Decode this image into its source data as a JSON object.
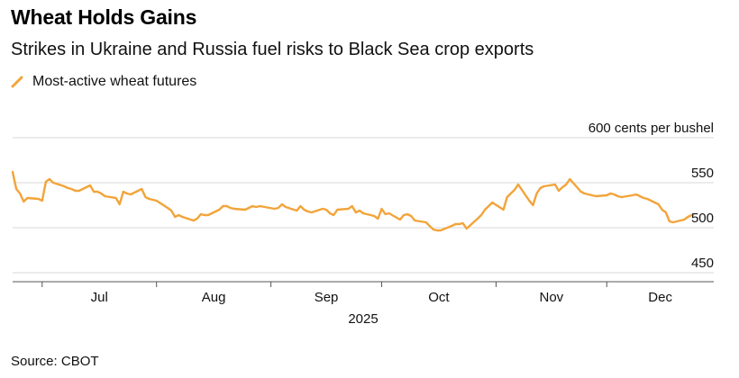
{
  "title": "Wheat Holds Gains",
  "subtitle": "Strikes in Ukraine and Russia fuel risks to Black Sea crop exports",
  "source": "Source: CBOT",
  "colors": {
    "series": "#f2a43a",
    "grid": "#d9d9d9",
    "axis": "#555555"
  },
  "chart_data": {
    "type": "line",
    "series": [
      {
        "name": "Most-active wheat futures",
        "points": [
          [
            "2025-06-23",
            562
          ],
          [
            "2025-06-24",
            543
          ],
          [
            "2025-06-25",
            538
          ],
          [
            "2025-06-26",
            529
          ],
          [
            "2025-06-27",
            533
          ],
          [
            "2025-06-30",
            532
          ],
          [
            "2025-07-01",
            530
          ],
          [
            "2025-07-02",
            551
          ],
          [
            "2025-07-03",
            554
          ],
          [
            "2025-07-04",
            550
          ],
          [
            "2025-07-07",
            546
          ],
          [
            "2025-07-08",
            544
          ],
          [
            "2025-07-09",
            543
          ],
          [
            "2025-07-10",
            541
          ],
          [
            "2025-07-11",
            541
          ],
          [
            "2025-07-14",
            547
          ],
          [
            "2025-07-15",
            540
          ],
          [
            "2025-07-16",
            540
          ],
          [
            "2025-07-17",
            538
          ],
          [
            "2025-07-18",
            535
          ],
          [
            "2025-07-21",
            533
          ],
          [
            "2025-07-22",
            526
          ],
          [
            "2025-07-23",
            540
          ],
          [
            "2025-07-24",
            538
          ],
          [
            "2025-07-25",
            537
          ],
          [
            "2025-07-28",
            543
          ],
          [
            "2025-07-29",
            534
          ],
          [
            "2025-07-30",
            532
          ],
          [
            "2025-07-31",
            531
          ],
          [
            "2025-08-01",
            530
          ],
          [
            "2025-08-04",
            522
          ],
          [
            "2025-08-05",
            519
          ],
          [
            "2025-08-06",
            512
          ],
          [
            "2025-08-07",
            514
          ],
          [
            "2025-08-08",
            512
          ],
          [
            "2025-08-11",
            508
          ],
          [
            "2025-08-12",
            510
          ],
          [
            "2025-08-13",
            515
          ],
          [
            "2025-08-14",
            514
          ],
          [
            "2025-08-15",
            514
          ],
          [
            "2025-08-18",
            520
          ],
          [
            "2025-08-19",
            524
          ],
          [
            "2025-08-20",
            524
          ],
          [
            "2025-08-21",
            522
          ],
          [
            "2025-08-22",
            521
          ],
          [
            "2025-08-25",
            520
          ],
          [
            "2025-08-26",
            522
          ],
          [
            "2025-08-27",
            524
          ],
          [
            "2025-08-28",
            523
          ],
          [
            "2025-08-29",
            524
          ],
          [
            "2025-09-02",
            521
          ],
          [
            "2025-09-03",
            522
          ],
          [
            "2025-09-04",
            526
          ],
          [
            "2025-09-05",
            523
          ],
          [
            "2025-09-08",
            519
          ],
          [
            "2025-09-09",
            524
          ],
          [
            "2025-09-10",
            520
          ],
          [
            "2025-09-11",
            518
          ],
          [
            "2025-09-12",
            517
          ],
          [
            "2025-09-15",
            521
          ],
          [
            "2025-09-16",
            520
          ],
          [
            "2025-09-17",
            516
          ],
          [
            "2025-09-18",
            514
          ],
          [
            "2025-09-19",
            520
          ],
          [
            "2025-09-22",
            521
          ],
          [
            "2025-09-23",
            524
          ],
          [
            "2025-09-24",
            517
          ],
          [
            "2025-09-25",
            519
          ],
          [
            "2025-09-26",
            516
          ],
          [
            "2025-09-29",
            513
          ],
          [
            "2025-09-30",
            510
          ],
          [
            "2025-10-01",
            521
          ],
          [
            "2025-10-02",
            515
          ],
          [
            "2025-10-03",
            516
          ],
          [
            "2025-10-06",
            509
          ],
          [
            "2025-10-07",
            514
          ],
          [
            "2025-10-08",
            515
          ],
          [
            "2025-10-09",
            513
          ],
          [
            "2025-10-10",
            508
          ],
          [
            "2025-10-13",
            506
          ],
          [
            "2025-10-14",
            502
          ],
          [
            "2025-10-15",
            498
          ],
          [
            "2025-10-16",
            497
          ],
          [
            "2025-10-17",
            497
          ],
          [
            "2025-10-20",
            502
          ],
          [
            "2025-10-21",
            504
          ],
          [
            "2025-10-22",
            504
          ],
          [
            "2025-10-23",
            505
          ],
          [
            "2025-10-24",
            499
          ],
          [
            "2025-10-27",
            510
          ],
          [
            "2025-10-28",
            514
          ],
          [
            "2025-10-29",
            520
          ],
          [
            "2025-10-30",
            524
          ],
          [
            "2025-10-31",
            528
          ],
          [
            "2025-11-03",
            520
          ],
          [
            "2025-11-04",
            534
          ],
          [
            "2025-11-05",
            538
          ],
          [
            "2025-11-06",
            542
          ],
          [
            "2025-11-07",
            548
          ],
          [
            "2025-11-10",
            530
          ],
          [
            "2025-11-11",
            525
          ],
          [
            "2025-11-12",
            538
          ],
          [
            "2025-11-13",
            544
          ],
          [
            "2025-11-14",
            546
          ],
          [
            "2025-11-17",
            548
          ],
          [
            "2025-11-18",
            541
          ],
          [
            "2025-11-19",
            545
          ],
          [
            "2025-11-20",
            548
          ],
          [
            "2025-11-21",
            554
          ],
          [
            "2025-11-24",
            540
          ],
          [
            "2025-11-25",
            538
          ],
          [
            "2025-11-26",
            537
          ],
          [
            "2025-11-28",
            535
          ],
          [
            "2025-12-01",
            536
          ],
          [
            "2025-12-02",
            538
          ],
          [
            "2025-12-03",
            537
          ],
          [
            "2025-12-04",
            535
          ],
          [
            "2025-12-05",
            534
          ],
          [
            "2025-12-08",
            536
          ],
          [
            "2025-12-09",
            537
          ],
          [
            "2025-12-10",
            535
          ],
          [
            "2025-12-11",
            533
          ],
          [
            "2025-12-12",
            532
          ],
          [
            "2025-12-15",
            526
          ],
          [
            "2025-12-16",
            520
          ],
          [
            "2025-12-17",
            517
          ],
          [
            "2025-12-18",
            507
          ],
          [
            "2025-12-19",
            506
          ],
          [
            "2025-12-22",
            509
          ],
          [
            "2025-12-23",
            512
          ],
          [
            "2025-12-24",
            514
          ]
        ]
      }
    ],
    "x_ticks": [
      "Jul",
      "Aug",
      "Sep",
      "Oct",
      "Nov",
      "Dec"
    ],
    "x_year_label": "2025",
    "y_ticks": [
      450,
      500,
      550,
      600
    ],
    "y_unit_label": "600 cents per bushel",
    "ylim": [
      440,
      610
    ],
    "xlim": [
      "2025-06-23",
      "2025-12-30"
    ],
    "grid": true,
    "legend": "top-left"
  }
}
